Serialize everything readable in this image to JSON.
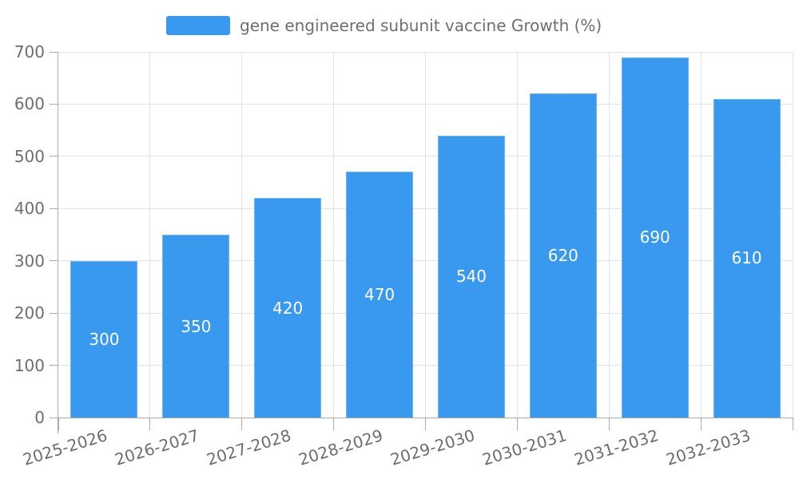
{
  "legend": {
    "label": "gene engineered subunit vaccine Growth (%)"
  },
  "colors": {
    "bar": "#3999ee",
    "bar_border": "#6db4f3",
    "grid": "#e3e3e3",
    "axis": "#aaaaaa",
    "text": "#6e6e6e",
    "value_label": "#ffffff"
  },
  "chart_data": {
    "type": "bar",
    "title": "gene engineered subunit vaccine Growth (%)",
    "categories": [
      "2025-2026",
      "2026-2027",
      "2027-2028",
      "2028-2029",
      "2029-2030",
      "2030-2031",
      "2031-2032",
      "2032-2033"
    ],
    "values": [
      300,
      350,
      420,
      470,
      540,
      620,
      690,
      610
    ],
    "xlabel": "",
    "ylabel": "",
    "ylim": [
      0,
      700
    ],
    "ytick_step": 100,
    "ytick_labels": [
      "0",
      "100",
      "200",
      "300",
      "400",
      "500",
      "600",
      "700"
    ],
    "grid": true,
    "legend_position": "top",
    "value_labels_shown": true
  }
}
